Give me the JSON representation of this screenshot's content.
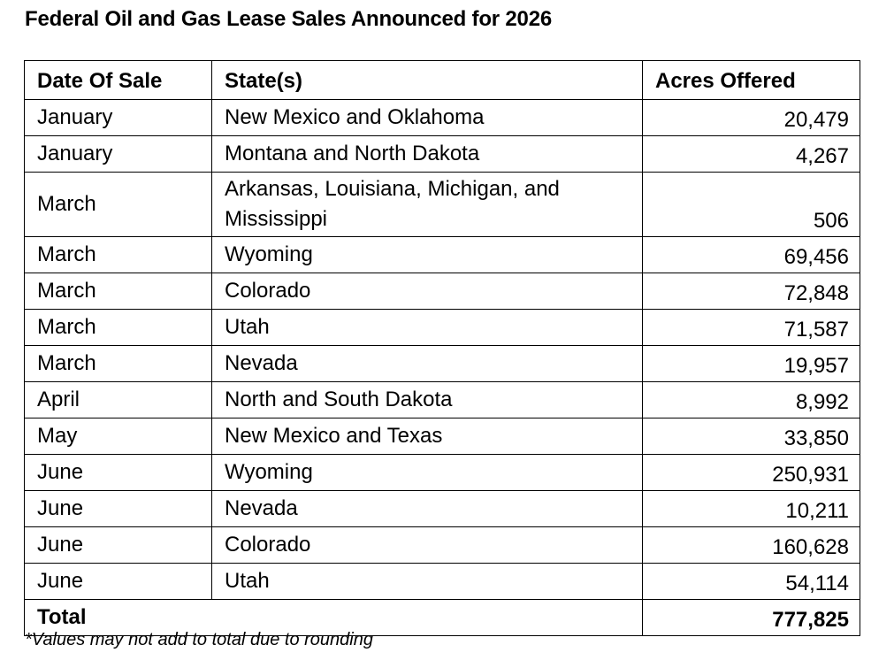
{
  "title": "Federal Oil and Gas Lease Sales Announced for 2026",
  "table": {
    "headers": [
      "Date Of Sale",
      "State(s)",
      "Acres Offered"
    ],
    "rows": [
      {
        "date": "January",
        "states": "New Mexico and Oklahoma",
        "acres": "20,479"
      },
      {
        "date": "January",
        "states": "Montana and North Dakota",
        "acres": "4,267"
      },
      {
        "date": "March",
        "states": "Arkansas, Louisiana, Michigan, and Mississippi",
        "acres": "506"
      },
      {
        "date": "March",
        "states": "Wyoming",
        "acres": "69,456"
      },
      {
        "date": "March",
        "states": "Colorado",
        "acres": "72,848"
      },
      {
        "date": "March",
        "states": "Utah",
        "acres": "71,587"
      },
      {
        "date": "March",
        "states": "Nevada",
        "acres": "19,957"
      },
      {
        "date": "April",
        "states": "North and South Dakota",
        "acres": "8,992"
      },
      {
        "date": "May",
        "states": "New Mexico and Texas",
        "acres": "33,850"
      },
      {
        "date": "June",
        "states": "Wyoming",
        "acres": "250,931"
      },
      {
        "date": "June",
        "states": "Nevada",
        "acres": "10,211"
      },
      {
        "date": "June",
        "states": "Colorado",
        "acres": "160,628"
      },
      {
        "date": "June",
        "states": "Utah",
        "acres": "54,114"
      }
    ],
    "total": {
      "label": "Total",
      "acres": "777,825"
    }
  },
  "footnote": "*Values may not add to total due to rounding"
}
